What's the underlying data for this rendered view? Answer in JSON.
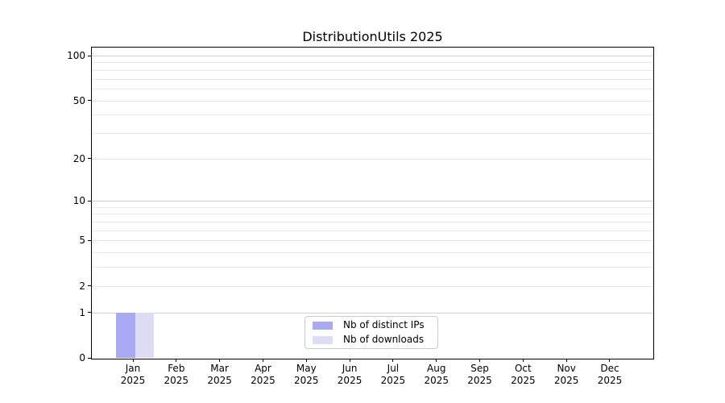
{
  "chart_data": {
    "type": "bar",
    "title": "DistributionUtils 2025",
    "categories": [
      "Jan 2025",
      "Feb 2025",
      "Mar 2025",
      "Apr 2025",
      "May 2025",
      "Jun 2025",
      "Jul 2025",
      "Aug 2025",
      "Sep 2025",
      "Oct 2025",
      "Nov 2025",
      "Dec 2025"
    ],
    "series": [
      {
        "name": "Nb of distinct IPs",
        "color": "#a9a9f3",
        "values": [
          1,
          0,
          0,
          0,
          0,
          0,
          0,
          0,
          0,
          0,
          0,
          0
        ]
      },
      {
        "name": "Nb of downloads",
        "color": "#dcdcf7",
        "values": [
          1,
          0,
          0,
          0,
          0,
          0,
          0,
          0,
          0,
          0,
          0,
          0
        ]
      }
    ],
    "y_axis": {
      "scale": "log1p",
      "tick_values": [
        0,
        1,
        2,
        5,
        10,
        20,
        50,
        100
      ],
      "tick_labels": [
        "0",
        "1",
        "2",
        "5",
        "10",
        "20",
        "50",
        "100"
      ],
      "major_grid_values": [
        1,
        10,
        100
      ],
      "minor_grid_values": [
        2,
        3,
        4,
        5,
        6,
        7,
        8,
        9,
        20,
        30,
        40,
        50,
        60,
        70,
        80,
        90
      ],
      "range": [
        0,
        113
      ]
    },
    "x_axis": {
      "label_lines": 2
    },
    "legend": {
      "position": "lower center",
      "entries": [
        "Nb of distinct IPs",
        "Nb of downloads"
      ]
    },
    "grid": "horizontal"
  }
}
